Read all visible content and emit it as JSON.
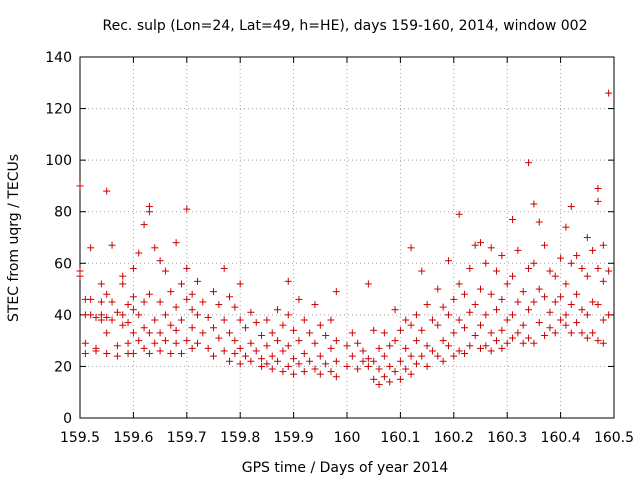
{
  "chart_data": {
    "type": "scatter",
    "title": "Rec. sulp (Lon=24, Lat=49, h=HE), days 159-160, 2014, window 002",
    "xlabel": "GPS time / Days of year 2014",
    "ylabel": "STEC from uqrg / TECUs",
    "xlim": [
      159.5,
      160.5
    ],
    "ylim": [
      0,
      140
    ],
    "xticks": [
      "159.5",
      "159.6",
      "159.7",
      "159.8",
      "159.9",
      "160",
      "160.1",
      "160.2",
      "160.3",
      "160.4",
      "160.5"
    ],
    "yticks": [
      "0",
      "20",
      "40",
      "60",
      "80",
      "100",
      "120",
      "140"
    ],
    "xtick_values": [
      159.5,
      159.6,
      159.7,
      159.8,
      159.9,
      160.0,
      160.1,
      160.2,
      160.3,
      160.4,
      160.5
    ],
    "ytick_values": [
      0,
      20,
      40,
      60,
      80,
      100,
      120,
      140
    ],
    "grid": true,
    "marker": "plus",
    "color": "#cc0000",
    "points": [
      [
        159.5,
        90
      ],
      [
        159.5,
        57
      ],
      [
        159.5,
        55
      ],
      [
        159.51,
        46
      ],
      [
        159.51,
        40
      ],
      [
        159.51,
        29
      ],
      [
        159.51,
        25
      ],
      [
        159.52,
        66
      ],
      [
        159.52,
        46
      ],
      [
        159.52,
        40
      ],
      [
        159.53,
        39
      ],
      [
        159.53,
        27
      ],
      [
        159.53,
        26
      ],
      [
        159.54,
        52
      ],
      [
        159.54,
        45
      ],
      [
        159.54,
        40
      ],
      [
        159.54,
        38
      ],
      [
        159.55,
        88
      ],
      [
        159.55,
        48
      ],
      [
        159.55,
        39
      ],
      [
        159.55,
        33
      ],
      [
        159.55,
        25
      ],
      [
        159.56,
        67
      ],
      [
        159.56,
        45
      ],
      [
        159.56,
        38
      ],
      [
        159.57,
        41
      ],
      [
        159.57,
        28
      ],
      [
        159.57,
        24
      ],
      [
        159.58,
        55
      ],
      [
        159.58,
        52
      ],
      [
        159.58,
        40
      ],
      [
        159.58,
        36
      ],
      [
        159.59,
        44
      ],
      [
        159.59,
        37
      ],
      [
        159.59,
        29
      ],
      [
        159.59,
        25
      ],
      [
        159.6,
        58
      ],
      [
        159.6,
        47
      ],
      [
        159.6,
        42
      ],
      [
        159.6,
        33
      ],
      [
        159.6,
        25
      ],
      [
        159.61,
        64
      ],
      [
        159.61,
        40
      ],
      [
        159.61,
        30
      ],
      [
        159.62,
        75
      ],
      [
        159.62,
        45
      ],
      [
        159.62,
        35
      ],
      [
        159.62,
        27
      ],
      [
        159.63,
        82
      ],
      [
        159.63,
        80
      ],
      [
        159.63,
        48
      ],
      [
        159.63,
        33
      ],
      [
        159.63,
        25
      ],
      [
        159.64,
        66
      ],
      [
        159.64,
        38
      ],
      [
        159.64,
        29
      ],
      [
        159.65,
        61
      ],
      [
        159.65,
        45
      ],
      [
        159.65,
        33
      ],
      [
        159.65,
        26
      ],
      [
        159.66,
        57
      ],
      [
        159.66,
        40
      ],
      [
        159.66,
        30
      ],
      [
        159.67,
        49
      ],
      [
        159.67,
        36
      ],
      [
        159.67,
        25
      ],
      [
        159.68,
        68
      ],
      [
        159.68,
        43
      ],
      [
        159.68,
        34
      ],
      [
        159.68,
        29
      ],
      [
        159.69,
        52
      ],
      [
        159.69,
        38
      ],
      [
        159.69,
        25
      ],
      [
        159.7,
        81
      ],
      [
        159.7,
        58
      ],
      [
        159.7,
        46
      ],
      [
        159.7,
        30
      ],
      [
        159.71,
        48
      ],
      [
        159.71,
        42
      ],
      [
        159.71,
        35
      ],
      [
        159.71,
        27
      ],
      [
        159.72,
        53
      ],
      [
        159.72,
        40
      ],
      [
        159.72,
        29
      ],
      [
        159.73,
        45
      ],
      [
        159.73,
        33
      ],
      [
        159.74,
        39
      ],
      [
        159.74,
        27
      ],
      [
        159.75,
        49
      ],
      [
        159.75,
        35
      ],
      [
        159.75,
        24
      ],
      [
        159.76,
        44
      ],
      [
        159.76,
        31
      ],
      [
        159.77,
        58
      ],
      [
        159.77,
        38
      ],
      [
        159.77,
        26
      ],
      [
        159.78,
        47
      ],
      [
        159.78,
        33
      ],
      [
        159.78,
        22
      ],
      [
        159.79,
        43
      ],
      [
        159.79,
        30
      ],
      [
        159.79,
        25
      ],
      [
        159.8,
        52
      ],
      [
        159.8,
        38
      ],
      [
        159.8,
        27
      ],
      [
        159.8,
        21
      ],
      [
        159.81,
        35
      ],
      [
        159.81,
        24
      ],
      [
        159.82,
        41
      ],
      [
        159.82,
        29
      ],
      [
        159.82,
        22
      ],
      [
        159.83,
        37
      ],
      [
        159.83,
        26
      ],
      [
        159.84,
        32
      ],
      [
        159.84,
        23
      ],
      [
        159.84,
        20
      ],
      [
        159.85,
        38
      ],
      [
        159.85,
        28
      ],
      [
        159.85,
        21
      ],
      [
        159.86,
        33
      ],
      [
        159.86,
        24
      ],
      [
        159.86,
        19
      ],
      [
        159.87,
        42
      ],
      [
        159.87,
        30
      ],
      [
        159.87,
        22
      ],
      [
        159.88,
        36
      ],
      [
        159.88,
        26
      ],
      [
        159.88,
        18
      ],
      [
        159.89,
        53
      ],
      [
        159.89,
        40
      ],
      [
        159.89,
        28
      ],
      [
        159.89,
        20
      ],
      [
        159.9,
        34
      ],
      [
        159.9,
        23
      ],
      [
        159.9,
        17
      ],
      [
        159.91,
        46
      ],
      [
        159.91,
        30
      ],
      [
        159.91,
        21
      ],
      [
        159.92,
        38
      ],
      [
        159.92,
        25
      ],
      [
        159.92,
        18
      ],
      [
        159.93,
        33
      ],
      [
        159.93,
        22
      ],
      [
        159.94,
        44
      ],
      [
        159.94,
        29
      ],
      [
        159.94,
        19
      ],
      [
        159.95,
        36
      ],
      [
        159.95,
        24
      ],
      [
        159.95,
        17
      ],
      [
        159.96,
        32
      ],
      [
        159.96,
        21
      ],
      [
        159.97,
        38
      ],
      [
        159.97,
        27
      ],
      [
        159.97,
        18
      ],
      [
        159.98,
        49
      ],
      [
        159.98,
        30
      ],
      [
        159.98,
        22
      ],
      [
        159.98,
        16
      ],
      [
        160.0,
        28
      ],
      [
        160.0,
        20
      ],
      [
        160.01,
        33
      ],
      [
        160.01,
        24
      ],
      [
        160.02,
        29
      ],
      [
        160.02,
        19
      ],
      [
        160.03,
        26
      ],
      [
        160.03,
        22
      ],
      [
        160.04,
        52
      ],
      [
        160.04,
        23
      ],
      [
        160.04,
        20
      ],
      [
        160.05,
        34
      ],
      [
        160.05,
        22
      ],
      [
        160.05,
        15
      ],
      [
        160.06,
        27
      ],
      [
        160.06,
        19
      ],
      [
        160.06,
        13
      ],
      [
        160.07,
        33
      ],
      [
        160.07,
        24
      ],
      [
        160.07,
        16
      ],
      [
        160.08,
        28
      ],
      [
        160.08,
        20
      ],
      [
        160.08,
        14
      ],
      [
        160.09,
        42
      ],
      [
        160.09,
        30
      ],
      [
        160.09,
        18
      ],
      [
        160.1,
        34
      ],
      [
        160.1,
        22
      ],
      [
        160.1,
        15
      ],
      [
        160.11,
        38
      ],
      [
        160.11,
        27
      ],
      [
        160.11,
        19
      ],
      [
        160.12,
        66
      ],
      [
        160.12,
        36
      ],
      [
        160.12,
        24
      ],
      [
        160.12,
        17
      ],
      [
        160.13,
        40
      ],
      [
        160.13,
        30
      ],
      [
        160.13,
        21
      ],
      [
        160.14,
        57
      ],
      [
        160.14,
        34
      ],
      [
        160.14,
        24
      ],
      [
        160.15,
        44
      ],
      [
        160.15,
        28
      ],
      [
        160.15,
        20
      ],
      [
        160.16,
        38
      ],
      [
        160.16,
        26
      ],
      [
        160.17,
        50
      ],
      [
        160.17,
        36
      ],
      [
        160.17,
        24
      ],
      [
        160.18,
        43
      ],
      [
        160.18,
        30
      ],
      [
        160.18,
        22
      ],
      [
        160.19,
        61
      ],
      [
        160.19,
        40
      ],
      [
        160.19,
        28
      ],
      [
        160.2,
        46
      ],
      [
        160.2,
        33
      ],
      [
        160.2,
        24
      ],
      [
        160.21,
        79
      ],
      [
        160.21,
        52
      ],
      [
        160.21,
        38
      ],
      [
        160.21,
        26
      ],
      [
        160.22,
        48
      ],
      [
        160.22,
        35
      ],
      [
        160.22,
        25
      ],
      [
        160.23,
        58
      ],
      [
        160.23,
        41
      ],
      [
        160.23,
        28
      ],
      [
        160.24,
        67
      ],
      [
        160.24,
        44
      ],
      [
        160.24,
        32
      ],
      [
        160.25,
        68
      ],
      [
        160.25,
        50
      ],
      [
        160.25,
        36
      ],
      [
        160.25,
        27
      ],
      [
        160.26,
        60
      ],
      [
        160.26,
        40
      ],
      [
        160.26,
        28
      ],
      [
        160.27,
        66
      ],
      [
        160.27,
        48
      ],
      [
        160.27,
        33
      ],
      [
        160.27,
        26
      ],
      [
        160.28,
        57
      ],
      [
        160.28,
        42
      ],
      [
        160.28,
        30
      ],
      [
        160.29,
        63
      ],
      [
        160.29,
        46
      ],
      [
        160.29,
        34
      ],
      [
        160.29,
        27
      ],
      [
        160.3,
        52
      ],
      [
        160.3,
        38
      ],
      [
        160.3,
        29
      ],
      [
        160.31,
        77
      ],
      [
        160.31,
        55
      ],
      [
        160.31,
        40
      ],
      [
        160.31,
        31
      ],
      [
        160.32,
        65
      ],
      [
        160.32,
        45
      ],
      [
        160.32,
        33
      ],
      [
        160.33,
        49
      ],
      [
        160.33,
        36
      ],
      [
        160.33,
        29
      ],
      [
        160.34,
        99
      ],
      [
        160.34,
        58
      ],
      [
        160.34,
        42
      ],
      [
        160.34,
        31
      ],
      [
        160.35,
        83
      ],
      [
        160.35,
        60
      ],
      [
        160.35,
        45
      ],
      [
        160.35,
        29
      ],
      [
        160.36,
        76
      ],
      [
        160.36,
        50
      ],
      [
        160.36,
        37
      ],
      [
        160.37,
        67
      ],
      [
        160.37,
        47
      ],
      [
        160.37,
        32
      ],
      [
        160.38,
        57
      ],
      [
        160.38,
        41
      ],
      [
        160.38,
        35
      ],
      [
        160.39,
        55
      ],
      [
        160.39,
        45
      ],
      [
        160.39,
        33
      ],
      [
        160.4,
        62
      ],
      [
        160.4,
        47
      ],
      [
        160.4,
        38
      ],
      [
        160.41,
        74
      ],
      [
        160.41,
        52
      ],
      [
        160.41,
        40
      ],
      [
        160.41,
        36
      ],
      [
        160.42,
        82
      ],
      [
        160.42,
        60
      ],
      [
        160.42,
        44
      ],
      [
        160.42,
        33
      ],
      [
        160.43,
        63
      ],
      [
        160.43,
        48
      ],
      [
        160.43,
        37
      ],
      [
        160.44,
        58
      ],
      [
        160.44,
        42
      ],
      [
        160.44,
        33
      ],
      [
        160.45,
        70
      ],
      [
        160.45,
        55
      ],
      [
        160.45,
        40
      ],
      [
        160.45,
        31
      ],
      [
        160.46,
        65
      ],
      [
        160.46,
        45
      ],
      [
        160.46,
        33
      ],
      [
        160.47,
        89
      ],
      [
        160.47,
        84
      ],
      [
        160.47,
        58
      ],
      [
        160.47,
        44
      ],
      [
        160.47,
        30
      ],
      [
        160.48,
        67
      ],
      [
        160.48,
        53
      ],
      [
        160.48,
        38
      ],
      [
        160.48,
        29
      ],
      [
        160.49,
        126
      ],
      [
        160.49,
        57
      ],
      [
        160.49,
        40
      ]
    ]
  }
}
